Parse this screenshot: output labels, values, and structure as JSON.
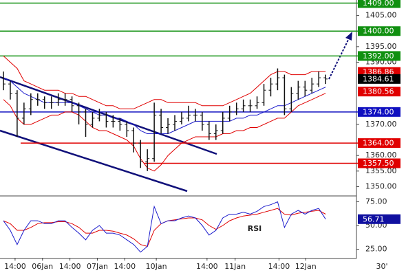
{
  "chart_data": {
    "type": "ohlc",
    "xlim": [
      0,
      52
    ],
    "xticks": [
      {
        "value": 2.2,
        "label": "14:00"
      },
      {
        "value": 6.2,
        "label": "06Jan"
      },
      {
        "value": 10.2,
        "label": "14:00"
      },
      {
        "value": 14.2,
        "label": "07Jan"
      },
      {
        "value": 18.2,
        "label": "14:00"
      },
      {
        "value": 22.8,
        "label": "10Jan"
      },
      {
        "value": 30.2,
        "label": "14:00"
      },
      {
        "value": 34.3,
        "label": "11Jan"
      },
      {
        "value": 40.7,
        "label": "14:00"
      },
      {
        "value": 44.6,
        "label": "12Jan"
      }
    ],
    "timeframe": "30'",
    "ylim": [
      1347,
      1410
    ],
    "yticks": [
      {
        "value": 1405,
        "label": "1405.00"
      },
      {
        "value": 1395,
        "label": "1395.00"
      },
      {
        "value": 1390,
        "label": "1390.00"
      },
      {
        "value": 1370,
        "label": "1370.00"
      },
      {
        "value": 1360,
        "label": "1360.00"
      },
      {
        "value": 1355,
        "label": "1355.00"
      },
      {
        "value": 1350,
        "label": "1350.00"
      }
    ],
    "open": [
      1385,
      1383,
      1380,
      1372,
      1375,
      1378,
      1378,
      1377,
      1377,
      1378,
      1378,
      1376,
      1374,
      1370,
      1372,
      1373,
      1371,
      1371,
      1370,
      1368,
      1364,
      1358,
      1359,
      1373,
      1369,
      1370,
      1371,
      1372,
      1373,
      1373,
      1370,
      1367,
      1368,
      1372,
      1374,
      1375,
      1376,
      1376,
      1377,
      1381,
      1383,
      1385,
      1375,
      1380,
      1382,
      1381,
      1383,
      1385
    ],
    "high": [
      1387,
      1384,
      1381,
      1377,
      1380,
      1380,
      1379,
      1379,
      1380,
      1380,
      1379,
      1377,
      1375,
      1374,
      1375,
      1374,
      1373,
      1372,
      1371,
      1369,
      1365,
      1362,
      1377,
      1375,
      1372,
      1373,
      1374,
      1376,
      1375,
      1374,
      1371,
      1370,
      1374,
      1376,
      1377,
      1378,
      1378,
      1379,
      1383,
      1385,
      1388,
      1386,
      1382,
      1384,
      1384,
      1385,
      1387,
      1386
    ],
    "low": [
      1381,
      1378,
      1366,
      1370,
      1373,
      1376,
      1375,
      1375,
      1376,
      1376,
      1374,
      1370,
      1366,
      1369,
      1371,
      1369,
      1369,
      1368,
      1366,
      1361,
      1356,
      1355,
      1358,
      1367,
      1367,
      1368,
      1370,
      1371,
      1371,
      1368,
      1365,
      1365,
      1367,
      1371,
      1373,
      1374,
      1374,
      1375,
      1376,
      1379,
      1381,
      1373,
      1374,
      1378,
      1379,
      1380,
      1382,
      1383
    ],
    "close": [
      1383,
      1380,
      1372,
      1375,
      1378,
      1378,
      1377,
      1377,
      1378,
      1378,
      1376,
      1374,
      1370,
      1372,
      1373,
      1371,
      1371,
      1370,
      1368,
      1364,
      1358,
      1359,
      1373,
      1369,
      1370,
      1371,
      1372,
      1373,
      1373,
      1370,
      1367,
      1368,
      1372,
      1374,
      1375,
      1376,
      1376,
      1377,
      1381,
      1383,
      1385,
      1375,
      1380,
      1382,
      1381,
      1383,
      1385,
      1384.61
    ],
    "series": [
      {
        "color": "#1a1acc",
        "values": [
          1385,
          1384,
          1382,
          1380,
          1379,
          1378,
          1377,
          1377,
          1377,
          1377,
          1377,
          1376,
          1375,
          1374,
          1373,
          1373,
          1372,
          1372,
          1371,
          1370,
          1368,
          1367,
          1367,
          1367,
          1367,
          1368,
          1369,
          1370,
          1371,
          1371,
          1371,
          1371,
          1371,
          1371,
          1372,
          1372,
          1373,
          1373,
          1374,
          1375,
          1376,
          1376,
          1377,
          1378,
          1379,
          1380,
          1381,
          1382
        ]
      },
      {
        "color": "#e00000",
        "values": [
          1392,
          1390,
          1388,
          1384,
          1383,
          1382,
          1381,
          1381,
          1381,
          1380,
          1380,
          1379,
          1379,
          1378,
          1377,
          1376,
          1376,
          1375,
          1375,
          1375,
          1376,
          1377,
          1378,
          1378,
          1377,
          1377,
          1377,
          1377,
          1377,
          1376,
          1376,
          1376,
          1376,
          1377,
          1378,
          1379,
          1380,
          1382,
          1384,
          1386,
          1387,
          1387,
          1386,
          1386,
          1386,
          1387,
          1387,
          1387
        ]
      },
      {
        "color": "#e00000",
        "values": [
          1378,
          1376,
          1372,
          1370,
          1370,
          1371,
          1372,
          1373,
          1373,
          1374,
          1374,
          1373,
          1371,
          1369,
          1368,
          1368,
          1367,
          1366,
          1365,
          1363,
          1359,
          1356,
          1355,
          1357,
          1360,
          1362,
          1364,
          1365,
          1366,
          1366,
          1366,
          1366,
          1367,
          1367,
          1368,
          1368,
          1369,
          1369,
          1370,
          1371,
          1372,
          1372,
          1374,
          1376,
          1377,
          1378,
          1379,
          1380
        ]
      }
    ],
    "levels": [
      {
        "value": 1409,
        "label": "1409.00",
        "color": "#109010"
      },
      {
        "value": 1400,
        "label": "1400.00",
        "color": "#109010"
      },
      {
        "value": 1392,
        "label": "1392.00",
        "color": "#109010"
      },
      {
        "value": 1374,
        "label": "1374.00",
        "color": "#1010c0"
      },
      {
        "value": 1364,
        "label": "1364.00",
        "color": "#e00000"
      },
      {
        "value": 1357.5,
        "label": "1357.50",
        "color": "#e00000"
      }
    ],
    "markers": [
      {
        "value": 1386.86,
        "label": "1386.86",
        "color": "#e00000"
      },
      {
        "value": 1384.61,
        "label": "1384.61",
        "color": "#000000"
      },
      {
        "value": 1380.56,
        "label": "1380.56",
        "color": "#e00000"
      }
    ],
    "rsi": {
      "label": "RSI",
      "ylim": [
        16,
        79
      ],
      "yticks": [
        {
          "value": 75,
          "label": "75.00"
        },
        {
          "value": 50,
          "label": "50.00"
        },
        {
          "value": 25,
          "label": "25.00"
        }
      ],
      "values": [
        55,
        45,
        30,
        45,
        55,
        55,
        52,
        52,
        55,
        55,
        48,
        42,
        35,
        45,
        50,
        42,
        42,
        40,
        35,
        30,
        22,
        28,
        70,
        52,
        55,
        55,
        58,
        60,
        58,
        50,
        40,
        45,
        58,
        62,
        62,
        64,
        62,
        65,
        70,
        72,
        75,
        48,
        62,
        66,
        62,
        66,
        68,
        56.71
      ],
      "color": "#1a1acc",
      "signal": {
        "color": "#e00000",
        "values": [
          55,
          52,
          45,
          45,
          48,
          52,
          53,
          53,
          54,
          54,
          52,
          48,
          42,
          42,
          45,
          45,
          44,
          42,
          40,
          36,
          30,
          28,
          45,
          52,
          55,
          56,
          57,
          58,
          58,
          56,
          50,
          46,
          50,
          55,
          58,
          60,
          61,
          62,
          64,
          66,
          68,
          62,
          61,
          63,
          64,
          65,
          66,
          62
        ]
      },
      "marker": {
        "value": 56.71,
        "label": "56.71",
        "color": "#1010a0"
      }
    }
  }
}
